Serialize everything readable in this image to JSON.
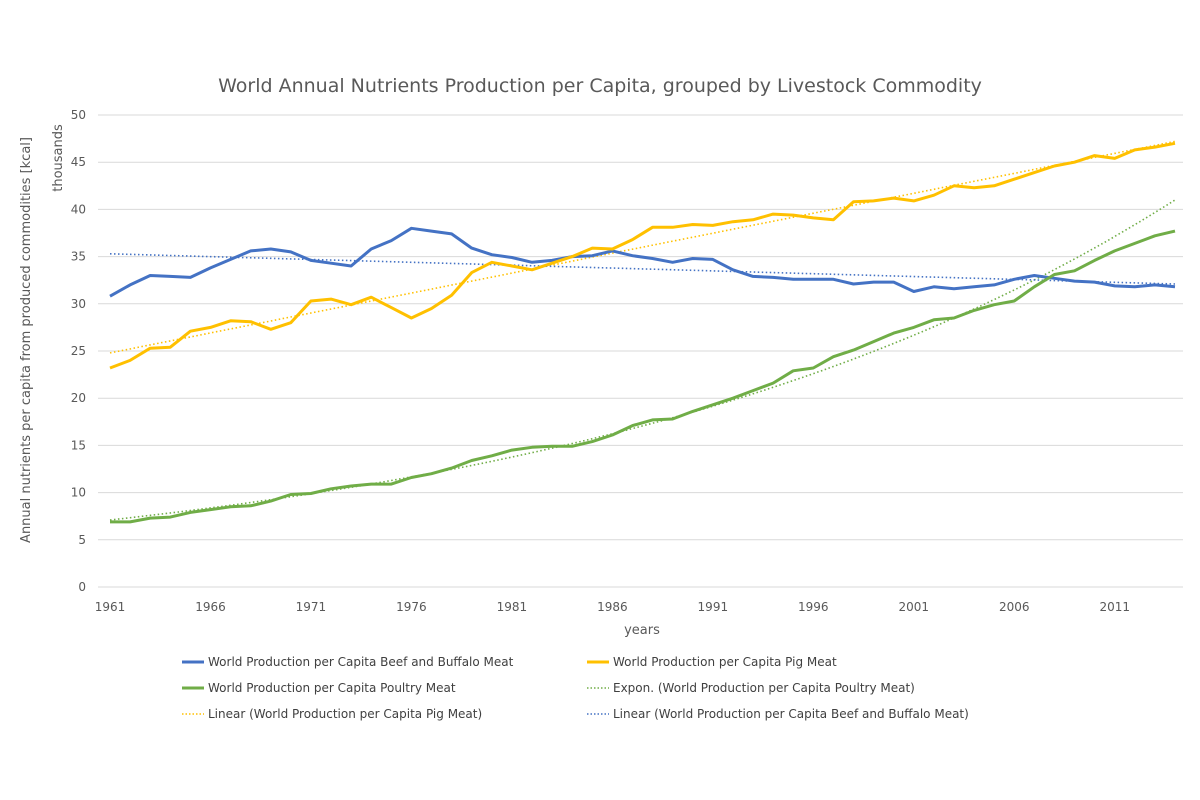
{
  "chart_data": {
    "type": "line",
    "title": "World Annual Nutrients Production per Capita, grouped by Livestock Commodity",
    "xlabel": "years",
    "ylabel": "Annual nutrients per capita from produced commodities [kcal]",
    "ylabel_units": "thousands",
    "ylim": [
      0,
      50
    ],
    "yticks": [
      0,
      5,
      10,
      15,
      20,
      25,
      30,
      35,
      40,
      45,
      50
    ],
    "xlim": [
      1961,
      2014
    ],
    "xtick_labels": [
      "1961",
      "1966",
      "1971",
      "1976",
      "1981",
      "1986",
      "1991",
      "1996",
      "2001",
      "2006",
      "2011"
    ],
    "grid": true,
    "legend_position": "bottom",
    "x": [
      1961,
      1962,
      1963,
      1964,
      1965,
      1966,
      1967,
      1968,
      1969,
      1970,
      1971,
      1972,
      1973,
      1974,
      1975,
      1976,
      1977,
      1978,
      1979,
      1980,
      1981,
      1982,
      1983,
      1984,
      1985,
      1986,
      1987,
      1988,
      1989,
      1990,
      1991,
      1992,
      1993,
      1994,
      1995,
      1996,
      1997,
      1998,
      1999,
      2000,
      2001,
      2002,
      2003,
      2004,
      2005,
      2006,
      2007,
      2008,
      2009,
      2010,
      2011,
      2012,
      2013,
      2014
    ],
    "series": [
      {
        "name": "World Production per Capita Beef and Buffalo Meat",
        "color": "#4472c4",
        "style": "solid",
        "values": [
          30.8,
          32.0,
          33.0,
          32.9,
          32.8,
          33.8,
          34.7,
          35.6,
          35.8,
          35.5,
          34.6,
          34.3,
          34.0,
          35.8,
          36.7,
          38.0,
          37.7,
          37.4,
          35.9,
          35.2,
          34.9,
          34.4,
          34.6,
          35.0,
          35.1,
          35.6,
          35.1,
          34.8,
          34.4,
          34.8,
          34.7,
          33.6,
          32.9,
          32.8,
          32.6,
          32.6,
          32.6,
          32.1,
          32.3,
          32.3,
          31.3,
          31.8,
          31.6,
          31.8,
          32.0,
          32.6,
          33.0,
          32.7,
          32.4,
          32.3,
          31.9,
          31.8,
          32.0,
          31.8
        ]
      },
      {
        "name": "World Production per Capita Pig Meat",
        "color": "#ffc000",
        "style": "solid",
        "values": [
          23.2,
          24.0,
          25.3,
          25.4,
          27.1,
          27.5,
          28.2,
          28.1,
          27.3,
          28.0,
          30.3,
          30.5,
          29.9,
          30.7,
          29.6,
          28.5,
          29.5,
          30.9,
          33.3,
          34.4,
          34.0,
          33.6,
          34.3,
          35.0,
          35.9,
          35.8,
          36.8,
          38.1,
          38.1,
          38.4,
          38.3,
          38.7,
          38.9,
          39.5,
          39.4,
          39.1,
          38.9,
          40.8,
          40.9,
          41.2,
          40.9,
          41.5,
          42.5,
          42.3,
          42.5,
          43.2,
          43.9,
          44.6,
          45.0,
          45.7,
          45.4,
          46.3,
          46.6,
          47.0
        ]
      },
      {
        "name": "World Production per Capita Poultry Meat",
        "color": "#70ad47",
        "style": "solid",
        "values": [
          6.9,
          6.9,
          7.3,
          7.4,
          7.9,
          8.2,
          8.5,
          8.6,
          9.1,
          9.8,
          9.9,
          10.4,
          10.7,
          10.9,
          10.9,
          11.6,
          12.0,
          12.6,
          13.4,
          13.9,
          14.5,
          14.8,
          14.9,
          14.9,
          15.4,
          16.1,
          17.1,
          17.7,
          17.8,
          18.6,
          19.3,
          20.0,
          20.8,
          21.6,
          22.9,
          23.2,
          24.4,
          25.1,
          26.0,
          26.9,
          27.5,
          28.3,
          28.5,
          29.3,
          29.9,
          30.3,
          31.8,
          33.1,
          33.5,
          34.6,
          35.6,
          36.4,
          37.2,
          37.7
        ]
      },
      {
        "name": "Expon. (World Production per Capita Poultry Meat)",
        "color": "#70ad47",
        "style": "dotted",
        "trend": "exponential",
        "values_at_endpoints": [
          7.1,
          41.0
        ]
      },
      {
        "name": "Linear (World Production per Capita Pig Meat)",
        "color": "#ffc000",
        "style": "dotted",
        "trend": "linear",
        "values_at_endpoints": [
          24.8,
          47.2
        ]
      },
      {
        "name": "Linear (World Production per Capita Beef and Buffalo Meat)",
        "color": "#4472c4",
        "style": "dotted",
        "trend": "linear",
        "values_at_endpoints": [
          35.3,
          32.1
        ]
      }
    ],
    "legend_order": [
      0,
      1,
      2,
      3,
      4,
      5
    ]
  }
}
